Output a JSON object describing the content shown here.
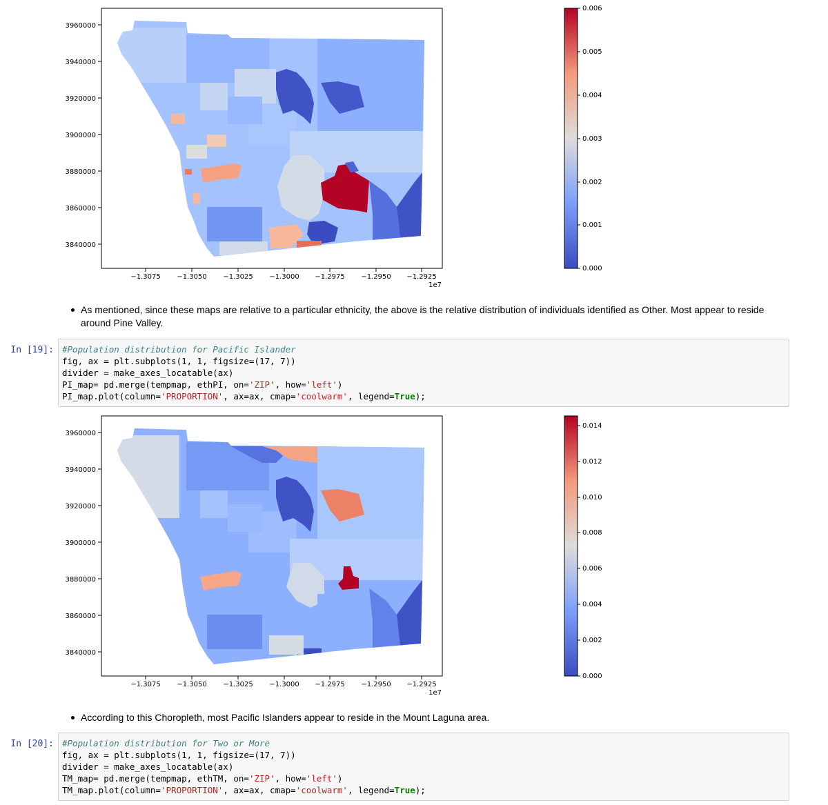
{
  "figure1": {
    "y_ticks": [
      "3960000",
      "3940000",
      "3920000",
      "3900000",
      "3880000",
      "3860000",
      "3840000"
    ],
    "x_ticks": [
      "−1.3075",
      "−1.3050",
      "−1.3025",
      "−1.3000",
      "−1.2975",
      "−1.2950",
      "−1.2925"
    ],
    "x_offset": "1e7",
    "colorbar_ticks": [
      "0.006",
      "0.005",
      "0.004",
      "0.003",
      "0.002",
      "0.001",
      "0.000"
    ],
    "colormap": "coolwarm"
  },
  "markdown1": {
    "text": "As mentioned, since these maps are relative to a particular ethnicity, the above is the relative distribution of individuals identified as Other. Most appear to reside around Pine Valley."
  },
  "cell19": {
    "prompt": "In [19]:",
    "comment": "#Population distribution for Pacific Islander",
    "line2": "fig, ax = plt.subplots(1, 1, figsize=(17, 7))",
    "line3": "divider = make_axes_locatable(ax)",
    "line4_a": "PI_map= pd.merge(tempmap, ethPI, on=",
    "line4_s1": "'ZIP'",
    "line4_b": ", how=",
    "line4_s2": "'left'",
    "line4_c": ")",
    "line5_a": "PI_map.plot(column=",
    "line5_s1": "'PROPORTION'",
    "line5_b": ", ax=ax, cmap=",
    "line5_s2": "'coolwarm'",
    "line5_c": ", legend=",
    "line5_kw": "True",
    "line5_d": ");"
  },
  "figure2": {
    "y_ticks": [
      "3960000",
      "3940000",
      "3920000",
      "3900000",
      "3880000",
      "3860000",
      "3840000"
    ],
    "x_ticks": [
      "−1.3075",
      "−1.3050",
      "−1.3025",
      "−1.3000",
      "−1.2975",
      "−1.2950",
      "−1.2925"
    ],
    "x_offset": "1e7",
    "colorbar_ticks": [
      "0.014",
      "0.012",
      "0.010",
      "0.008",
      "0.006",
      "0.004",
      "0.002",
      "0.000"
    ],
    "colormap": "coolwarm"
  },
  "markdown2": {
    "text": "According to this Choropleth, most Pacific Islanders appear to reside in the Mount Laguna area."
  },
  "cell20": {
    "prompt": "In [20]:",
    "comment": "#Population distribution for Two or More",
    "line2": "fig, ax = plt.subplots(1, 1, figsize=(17, 7))",
    "line3": "divider = make_axes_locatable(ax)",
    "line4_a": "TM_map= pd.merge(tempmap, ethTM, on=",
    "line4_s1": "'ZIP'",
    "line4_b": ", how=",
    "line4_s2": "'left'",
    "line4_c": ")",
    "line5_a": "TM_map.plot(column=",
    "line5_s1": "'PROPORTION'",
    "line5_b": ", ax=ax, cmap=",
    "line5_s2": "'coolwarm'",
    "line5_c": ", legend=",
    "line5_kw": "True",
    "line5_d": ");"
  }
}
